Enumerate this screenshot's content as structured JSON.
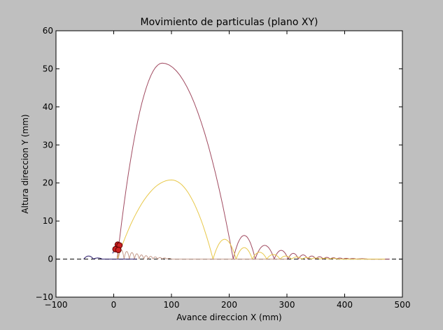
{
  "chart_data": {
    "type": "line",
    "title": "Movimiento de particulas (plano XY)",
    "xlabel": "Avance direccion X (mm)",
    "ylabel": "Altura direccion Y (mm)",
    "xlim": [
      -100,
      500
    ],
    "ylim": [
      -10,
      60
    ],
    "xticks": [
      -100,
      0,
      100,
      200,
      300,
      400,
      500
    ],
    "xtick_labels": [
      "−100",
      "0",
      "100",
      "200",
      "300",
      "400",
      "500"
    ],
    "yticks": [
      -10,
      0,
      10,
      20,
      30,
      40,
      50,
      60
    ],
    "ytick_labels": [
      "−10",
      "0",
      "10",
      "20",
      "30",
      "40",
      "50",
      "60"
    ],
    "grid": false,
    "reference_line": {
      "y": 0,
      "style": "dashed",
      "color": "#000000"
    },
    "series": [
      {
        "color": "#a04a60",
        "arcs": [
          {
            "x0": 6,
            "x1": 207,
            "peak": 51.5,
            "peak_x": 84
          },
          {
            "x0": 207,
            "x1": 245,
            "peak": 6.2
          },
          {
            "x0": 245,
            "x1": 278,
            "peak": 3.6
          },
          {
            "x0": 278,
            "x1": 302,
            "peak": 2.3
          },
          {
            "x0": 302,
            "x1": 320,
            "peak": 1.5
          },
          {
            "x0": 320,
            "x1": 336,
            "peak": 1.1
          },
          {
            "x0": 336,
            "x1": 350,
            "peak": 0.8
          },
          {
            "x0": 350,
            "x1": 363,
            "peak": 0.6
          },
          {
            "x0": 363,
            "x1": 375,
            "peak": 0.45
          },
          {
            "x0": 375,
            "x1": 386,
            "peak": 0.35
          },
          {
            "x0": 386,
            "x1": 397,
            "peak": 0.28
          },
          {
            "x0": 397,
            "x1": 408,
            "peak": 0.2
          },
          {
            "x0": 408,
            "x1": 420,
            "peak": 0.15
          },
          {
            "x0": 420,
            "x1": 440,
            "peak": 0.1
          }
        ],
        "tail": [
          [
            440,
            0
          ],
          [
            478,
            0
          ]
        ]
      },
      {
        "color": "#e8c84a",
        "arcs": [
          {
            "x0": 6,
            "x1": 172,
            "peak": 20.8,
            "peak_x": 100
          },
          {
            "x0": 172,
            "x1": 212,
            "peak": 5.2
          },
          {
            "x0": 212,
            "x1": 240,
            "peak": 3.0
          },
          {
            "x0": 240,
            "x1": 265,
            "peak": 1.8
          },
          {
            "x0": 265,
            "x1": 288,
            "peak": 1.2
          },
          {
            "x0": 288,
            "x1": 308,
            "peak": 0.8
          },
          {
            "x0": 308,
            "x1": 326,
            "peak": 0.55
          },
          {
            "x0": 326,
            "x1": 342,
            "peak": 0.4
          },
          {
            "x0": 342,
            "x1": 357,
            "peak": 0.3
          },
          {
            "x0": 357,
            "x1": 372,
            "peak": 0.22
          },
          {
            "x0": 372,
            "x1": 390,
            "peak": 0.15
          }
        ],
        "tail": [
          [
            390,
            0
          ],
          [
            470,
            0
          ]
        ]
      },
      {
        "color": "#c49a8a",
        "arcs": [
          {
            "x0": 8,
            "x1": 18,
            "peak": 2.4
          },
          {
            "x0": 18,
            "x1": 27,
            "peak": 2.0
          },
          {
            "x0": 27,
            "x1": 36,
            "peak": 1.7
          },
          {
            "x0": 36,
            "x1": 44,
            "peak": 1.4
          },
          {
            "x0": 44,
            "x1": 52,
            "peak": 1.1
          },
          {
            "x0": 52,
            "x1": 60,
            "peak": 0.9
          },
          {
            "x0": 60,
            "x1": 68,
            "peak": 0.7
          },
          {
            "x0": 68,
            "x1": 76,
            "peak": 0.55
          },
          {
            "x0": 76,
            "x1": 84,
            "peak": 0.4
          },
          {
            "x0": 84,
            "x1": 92,
            "peak": 0.3
          },
          {
            "x0": 92,
            "x1": 100,
            "peak": 0.2
          }
        ],
        "tail": [
          [
            100,
            0
          ],
          [
            300,
            0
          ]
        ]
      },
      {
        "color": "#2a1a6a",
        "arcs": [
          {
            "x0": -52,
            "x1": -35,
            "peak": 0.8
          },
          {
            "x0": -35,
            "x1": -20,
            "peak": 0.3
          }
        ],
        "tail": [
          [
            -20,
            0
          ],
          [
            40,
            0
          ]
        ],
        "extra": [
          [
            -2,
            1.5
          ],
          [
            6,
            3.6
          ]
        ]
      }
    ],
    "markers": [
      {
        "x": 7,
        "y": 3.8,
        "color": "#cc2222"
      },
      {
        "x": 10,
        "y": 3.6,
        "color": "#cc2222"
      },
      {
        "x": 3,
        "y": 2.6,
        "color": "#cc2222"
      },
      {
        "x": 8,
        "y": 2.4,
        "color": "#cc2222"
      }
    ]
  }
}
